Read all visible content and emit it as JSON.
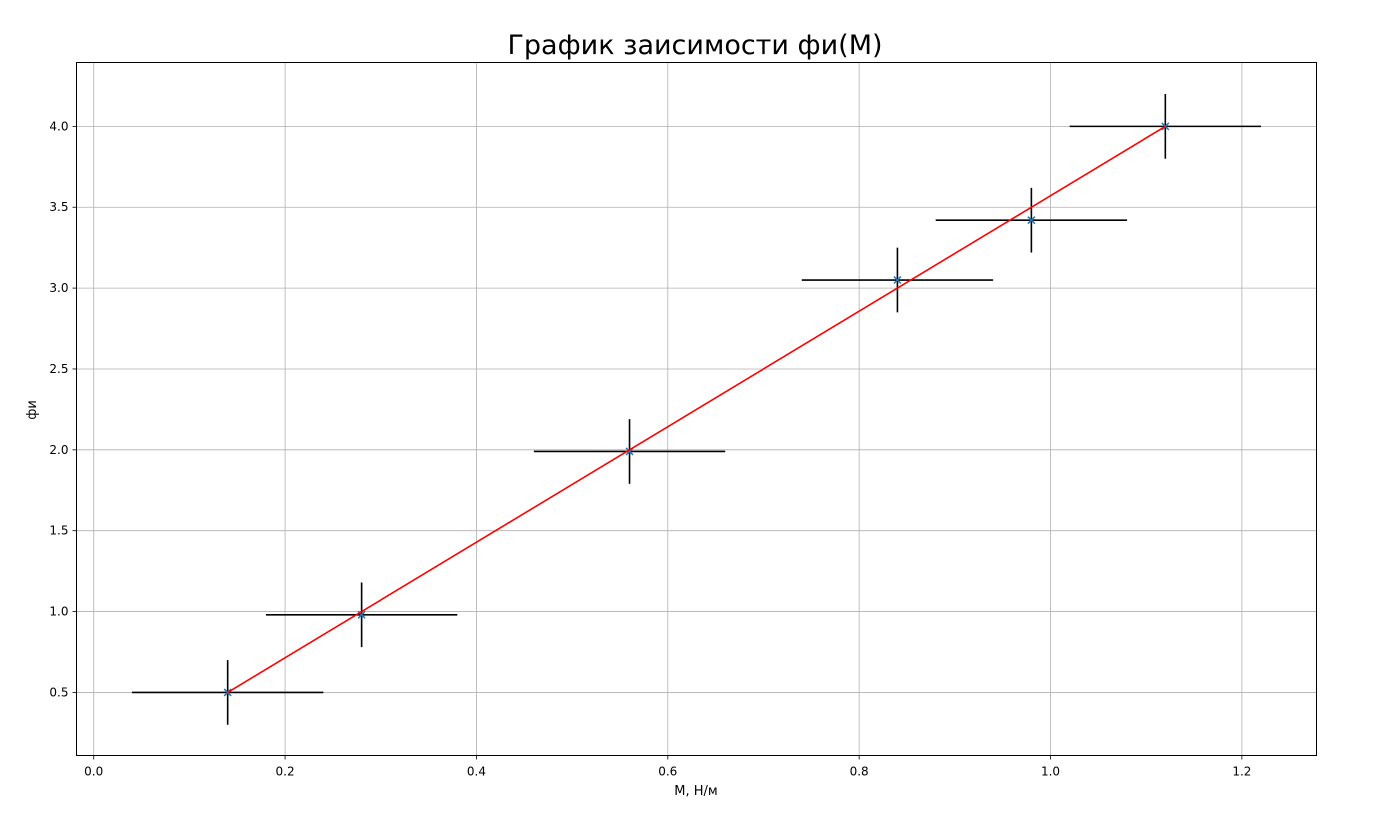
{
  "chart_data": {
    "type": "scatter",
    "title": "График заисимости фи(M)",
    "xlabel": "M, Н/м",
    "ylabel": "фи",
    "xlim": [
      -0.018,
      1.278
    ],
    "ylim": [
      0.11,
      4.395
    ],
    "xticks": [
      0.0,
      0.2,
      0.4,
      0.6,
      0.8,
      1.0,
      1.2
    ],
    "xtick_labels": [
      "0.0",
      "0.2",
      "0.4",
      "0.6",
      "0.8",
      "1.0",
      "1.2"
    ],
    "yticks": [
      0.5,
      1.0,
      1.5,
      2.0,
      2.5,
      3.0,
      3.5,
      4.0
    ],
    "ytick_labels": [
      "0.5",
      "1.0",
      "1.5",
      "2.0",
      "2.5",
      "3.0",
      "3.5",
      "4.0"
    ],
    "grid": true,
    "series": [
      {
        "kind": "points-with-errorbars",
        "marker": "x",
        "color": "#1f77b4",
        "errorbar_color": "#000000",
        "x": [
          0.14,
          0.28,
          0.56,
          0.84,
          0.98,
          1.12
        ],
        "y": [
          0.5,
          0.98,
          1.99,
          3.05,
          3.42,
          4.0
        ],
        "xerr": [
          0.1,
          0.1,
          0.1,
          0.1,
          0.1,
          0.1
        ],
        "yerr": [
          0.2,
          0.2,
          0.2,
          0.2,
          0.2,
          0.2
        ]
      },
      {
        "kind": "line",
        "color": "#ff0000",
        "x": [
          0.14,
          1.12
        ],
        "y": [
          0.5,
          4.0
        ]
      }
    ]
  }
}
